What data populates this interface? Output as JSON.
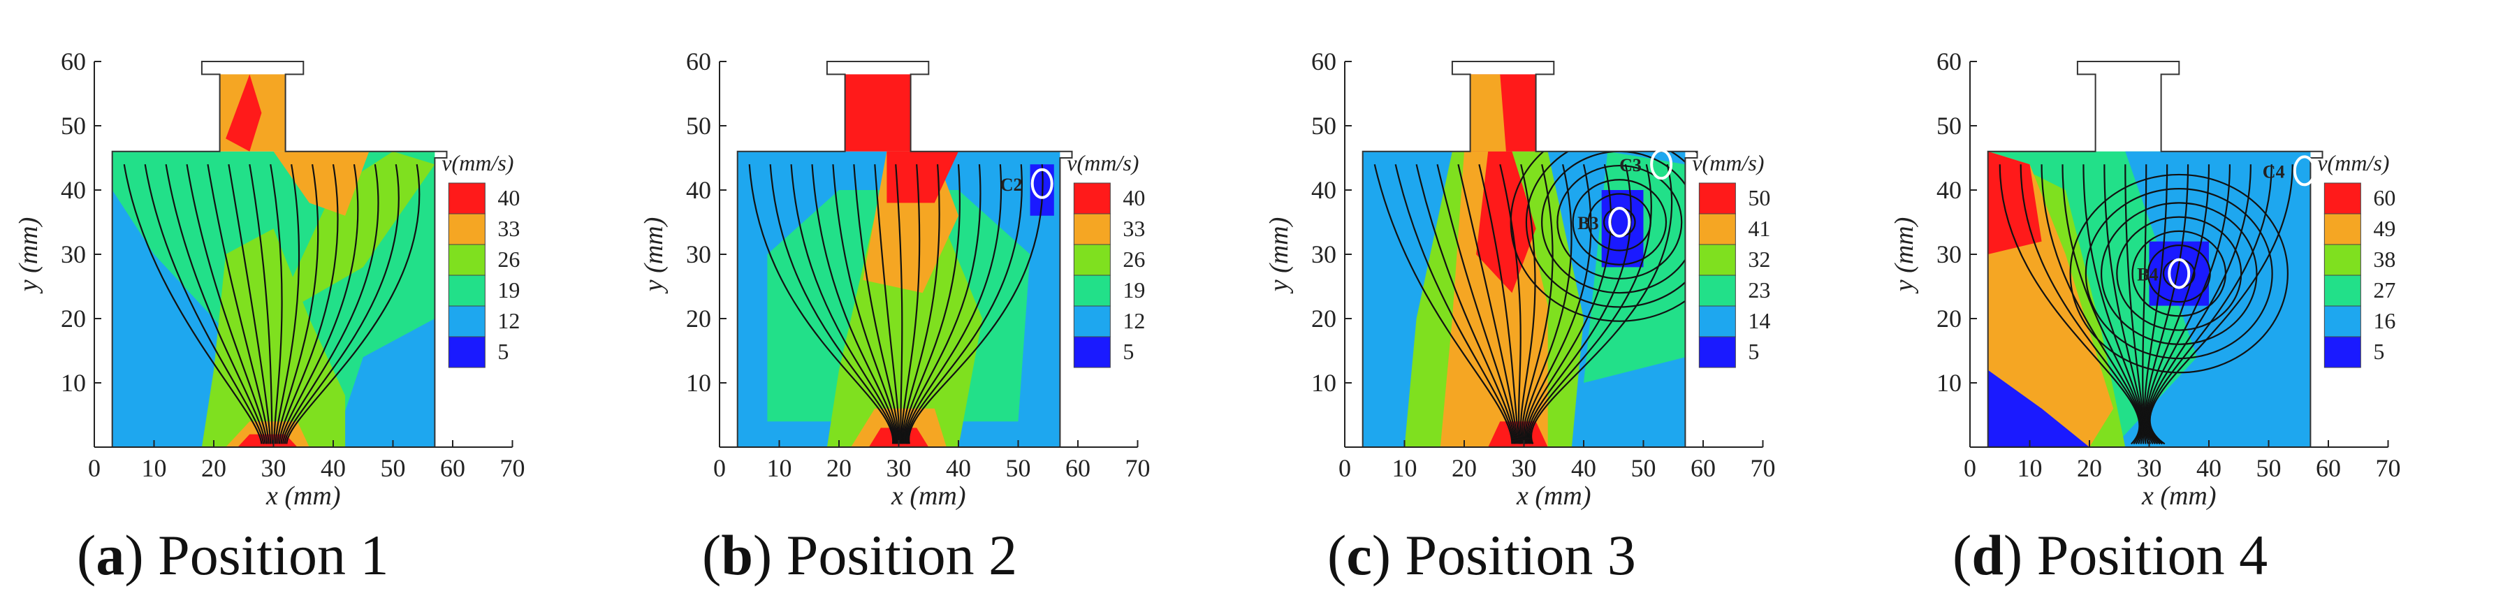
{
  "chart_data": [
    {
      "type": "contour",
      "caption_letter": "a",
      "caption_text": "Position 1",
      "xlabel": "x (mm)",
      "ylabel": "y (mm)",
      "xlim": [
        0,
        70
      ],
      "ylim": [
        0,
        60
      ],
      "xticks": [
        "0",
        "10",
        "20",
        "30",
        "40",
        "50",
        "60",
        "70"
      ],
      "yticks": [
        "10",
        "20",
        "30",
        "40",
        "50",
        "60"
      ],
      "colorbar": {
        "label": "v(mm/s)",
        "levels": [
          "40",
          "33",
          "26",
          "19",
          "12",
          "5"
        ],
        "colors": [
          "#ff1a1a",
          "#f5a623",
          "#7fe01f",
          "#22e089",
          "#1ea7ef",
          "#1a1aff"
        ]
      },
      "annotations": []
    },
    {
      "type": "contour",
      "caption_letter": "b",
      "caption_text": "Position 2",
      "xlabel": "x (mm)",
      "ylabel": "y (mm)",
      "xlim": [
        0,
        70
      ],
      "ylim": [
        0,
        60
      ],
      "xticks": [
        "0",
        "10",
        "20",
        "30",
        "40",
        "50",
        "60",
        "70"
      ],
      "yticks": [
        "10",
        "20",
        "30",
        "40",
        "50",
        "60"
      ],
      "colorbar": {
        "label": "v(mm/s)",
        "levels": [
          "40",
          "33",
          "26",
          "19",
          "12",
          "5"
        ],
        "colors": [
          "#ff1a1a",
          "#f5a623",
          "#7fe01f",
          "#22e089",
          "#1ea7ef",
          "#1a1aff"
        ]
      },
      "annotations": [
        {
          "label": "C2",
          "x": 54,
          "y": 41
        }
      ]
    },
    {
      "type": "contour",
      "caption_letter": "c",
      "caption_text": "Position 3",
      "xlabel": "x (mm)",
      "ylabel": "y (mm)",
      "xlim": [
        0,
        70
      ],
      "ylim": [
        0,
        60
      ],
      "xticks": [
        "0",
        "10",
        "20",
        "30",
        "40",
        "50",
        "60",
        "70"
      ],
      "yticks": [
        "10",
        "20",
        "30",
        "40",
        "50",
        "60"
      ],
      "colorbar": {
        "label": "v(mm/s)",
        "levels": [
          "50",
          "41",
          "32",
          "23",
          "14",
          "5"
        ],
        "colors": [
          "#ff1a1a",
          "#f5a623",
          "#7fe01f",
          "#22e089",
          "#1ea7ef",
          "#1a1aff"
        ]
      },
      "annotations": [
        {
          "label": "B3",
          "x": 46,
          "y": 35
        },
        {
          "label": "C3",
          "x": 53,
          "y": 44
        }
      ]
    },
    {
      "type": "contour",
      "caption_letter": "d",
      "caption_text": "Position 4",
      "xlabel": "x (mm)",
      "ylabel": "y (mm)",
      "xlim": [
        0,
        70
      ],
      "ylim": [
        0,
        60
      ],
      "xticks": [
        "0",
        "10",
        "20",
        "30",
        "40",
        "50",
        "60",
        "70"
      ],
      "yticks": [
        "10",
        "20",
        "30",
        "40",
        "50",
        "60"
      ],
      "colorbar": {
        "label": "v(mm/s)",
        "levels": [
          "60",
          "49",
          "38",
          "27",
          "16",
          "5"
        ],
        "colors": [
          "#ff1a1a",
          "#f5a623",
          "#7fe01f",
          "#22e089",
          "#1ea7ef",
          "#1a1aff"
        ]
      },
      "annotations": [
        {
          "label": "B4",
          "x": 35,
          "y": 27
        },
        {
          "label": "C4",
          "x": 56,
          "y": 43
        }
      ]
    }
  ]
}
